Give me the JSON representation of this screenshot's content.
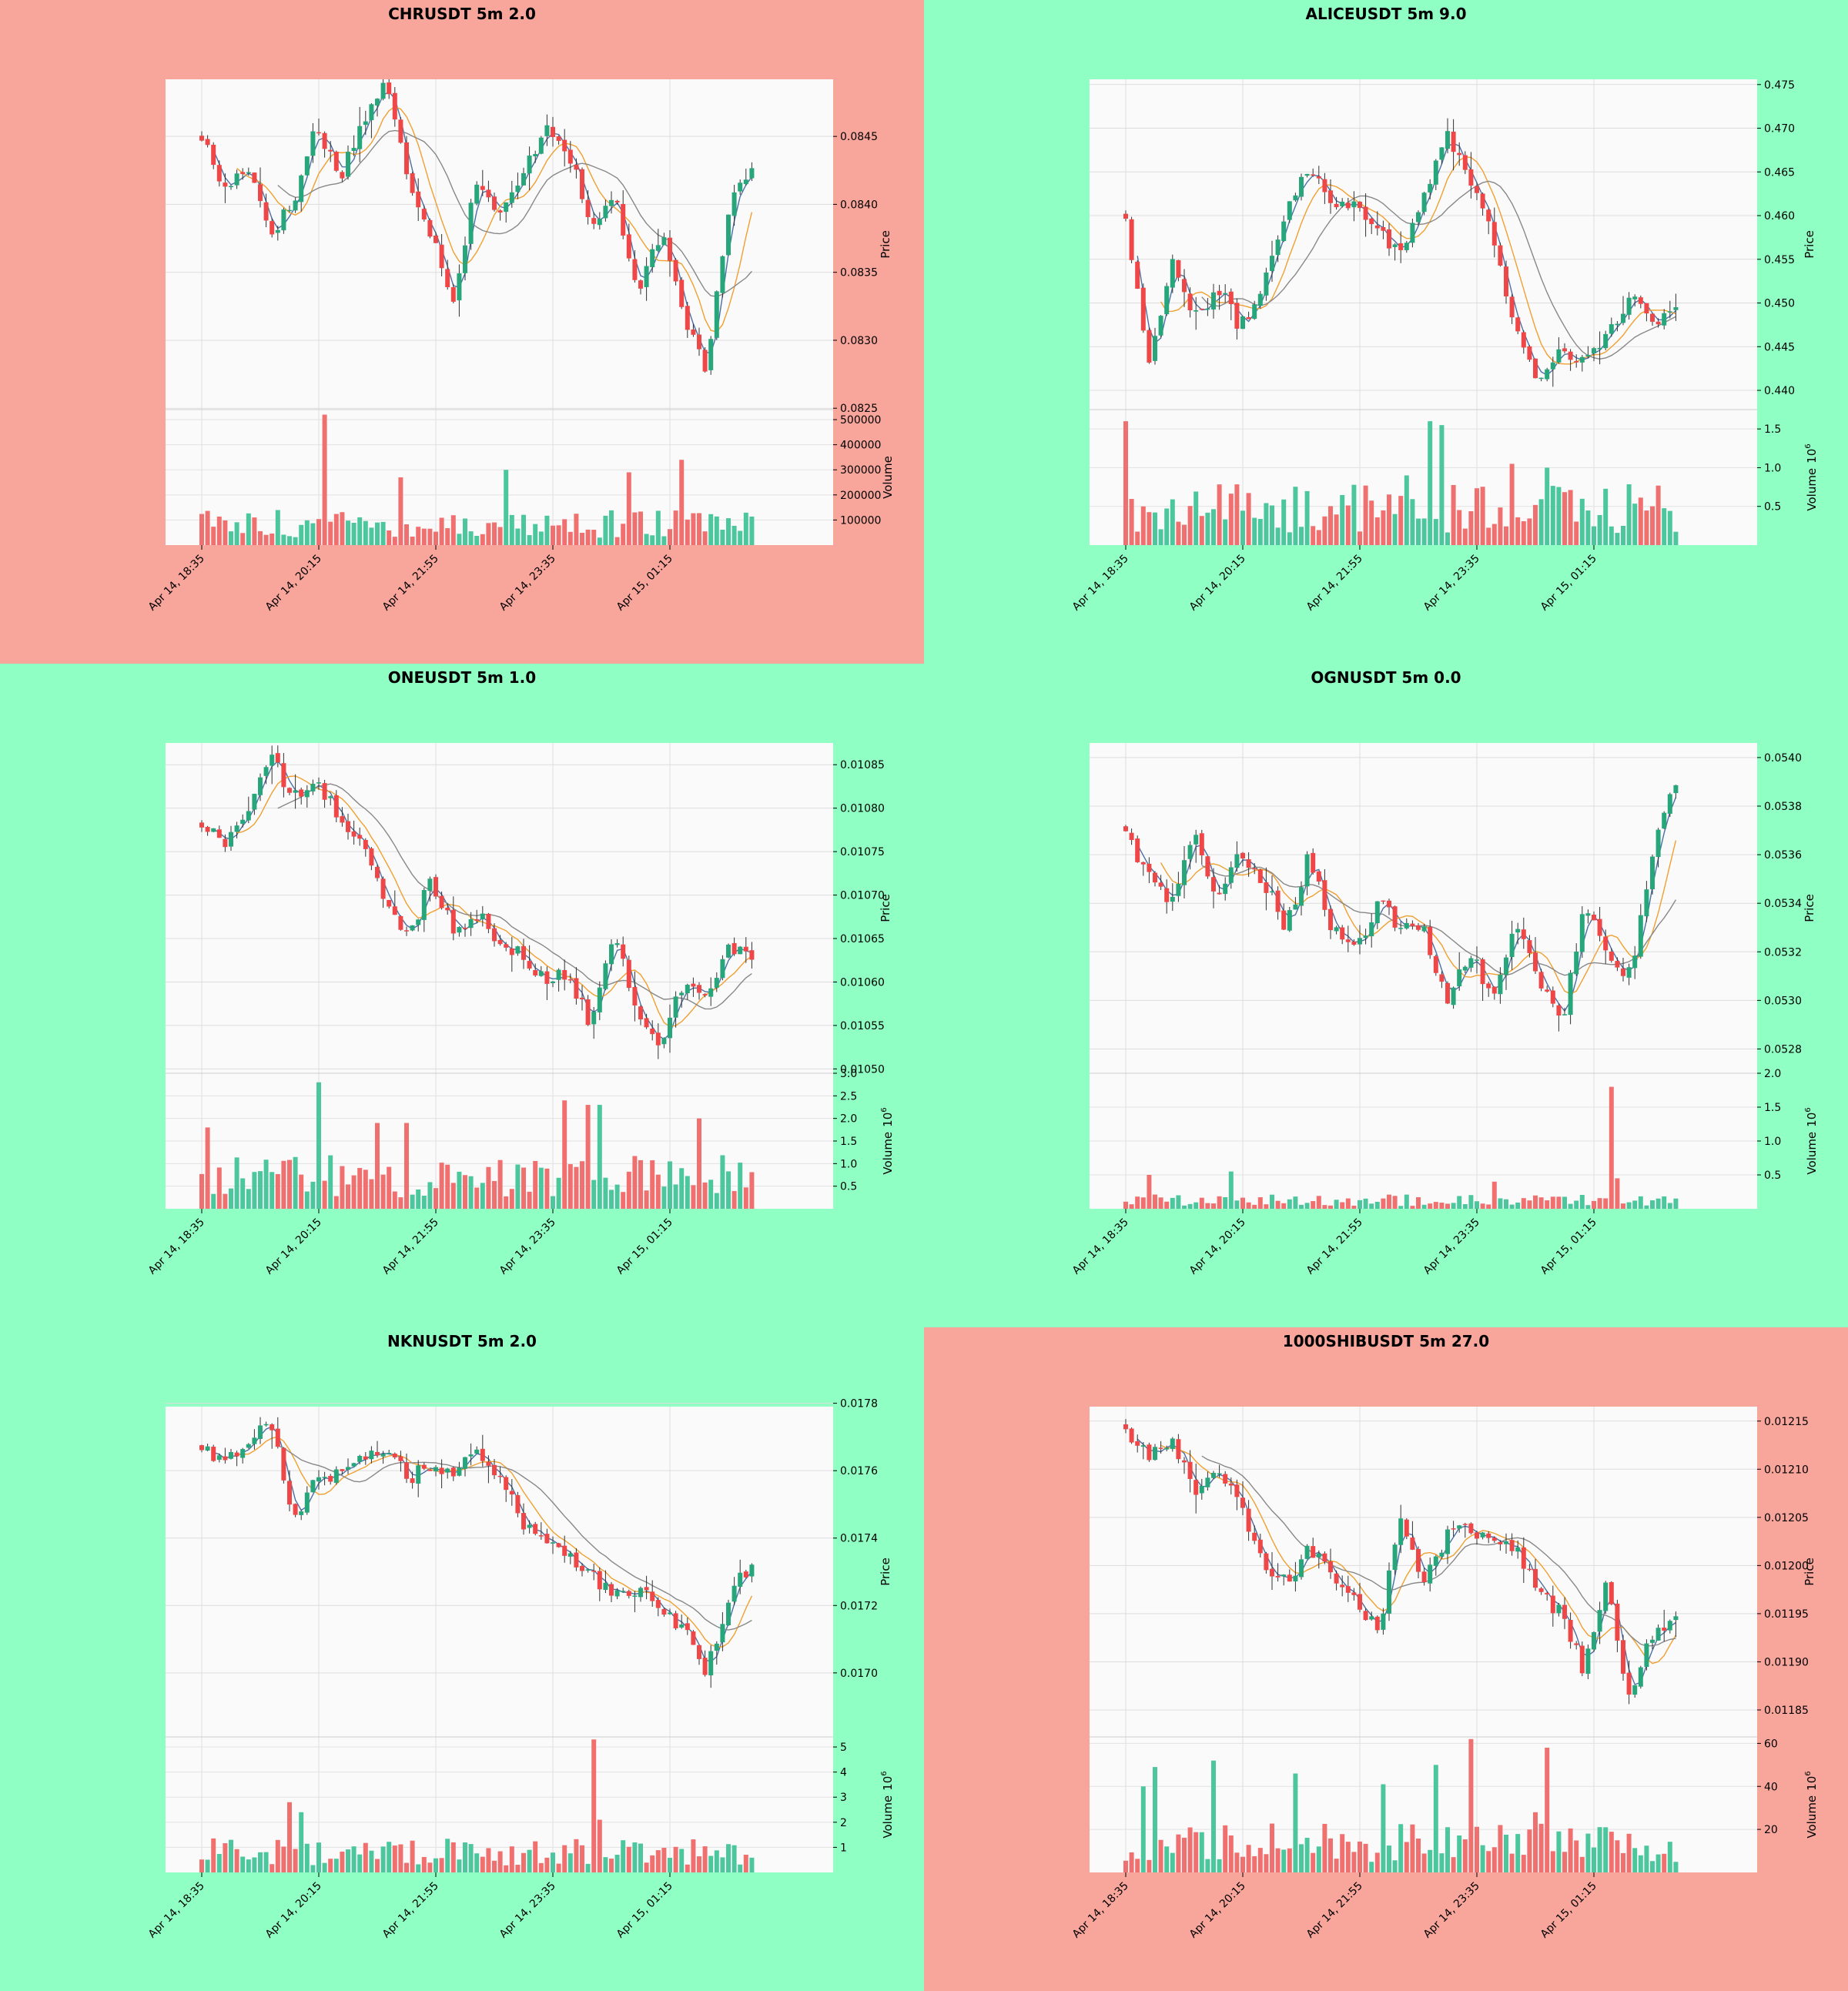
{
  "colors": {
    "up": "#26a67a",
    "down": "#ef4747",
    "volume_up": "#4cc79d",
    "volume_down": "#f07070",
    "ma_fast": "#4a6fa5",
    "ma_mid": "#f0a030",
    "ma_slow": "#888888",
    "panel_red": "#f8a59c",
    "panel_green": "#90ffc4",
    "plot_bg": "#fafafa"
  },
  "x_labels": [
    "Apr 14, 18:35",
    "Apr 14, 20:15",
    "Apr 14, 21:55",
    "Apr 14, 23:35",
    "Apr 15, 01:15"
  ],
  "price_axis_label": "Price",
  "volume_axis_label": "Volume",
  "chart_data": [
    {
      "type": "candlestick",
      "title": "CHRUSDT 5m 2.0",
      "background": "red",
      "price_ticks": [
        "0.0825",
        "0.0830",
        "0.0835",
        "0.0840",
        "0.0845"
      ],
      "price_tick_values": [
        0.0825,
        0.083,
        0.0835,
        0.084,
        0.0845
      ],
      "ylim": [
        0.08249,
        0.08492
      ],
      "close_path": [
        0.0845,
        0.0841,
        0.0843,
        0.0838,
        0.084,
        0.0846,
        0.0842,
        0.0846,
        0.0849,
        0.0842,
        0.0838,
        0.0833,
        0.0842,
        0.0839,
        0.0842,
        0.0846,
        0.0844,
        0.0838,
        0.0841,
        0.0833,
        0.0838,
        0.0832,
        0.0828,
        0.084,
        0.0843
      ],
      "volume_ticks": [
        "100000",
        "200000",
        "300000",
        "400000",
        "500000"
      ],
      "volume_tick_values": [
        100000,
        200000,
        300000,
        400000,
        500000
      ],
      "volume_exponent": "",
      "volume_max": 540000,
      "volume_base": 80000,
      "volume_spikes": [
        [
          21,
          520000
        ],
        [
          34,
          270000
        ],
        [
          52,
          300000
        ],
        [
          73,
          290000
        ],
        [
          82,
          340000
        ]
      ]
    },
    {
      "type": "candlestick",
      "title": "ALICEUSDT 5m 9.0",
      "background": "green",
      "price_ticks": [
        "0.440",
        "0.445",
        "0.450",
        "0.455",
        "0.460",
        "0.465",
        "0.470",
        "0.475"
      ],
      "price_tick_values": [
        0.44,
        0.445,
        0.45,
        0.455,
        0.46,
        0.465,
        0.47,
        0.475
      ],
      "ylim": [
        0.4378,
        0.4756
      ],
      "close_path": [
        0.46,
        0.443,
        0.455,
        0.448,
        0.452,
        0.447,
        0.452,
        0.461,
        0.466,
        0.461,
        0.462,
        0.458,
        0.456,
        0.462,
        0.47,
        0.464,
        0.458,
        0.447,
        0.441,
        0.445,
        0.443,
        0.446,
        0.451,
        0.447,
        0.45
      ],
      "volume_ticks": [
        "0.5",
        "1.0",
        "1.5"
      ],
      "volume_tick_values": [
        0.5,
        1.0,
        1.5
      ],
      "volume_exponent": "6",
      "volume_max": 1.75,
      "volume_base": 0.45,
      "volume_spikes": [
        [
          0,
          1.6
        ],
        [
          52,
          1.6
        ],
        [
          54,
          1.55
        ],
        [
          48,
          0.9
        ],
        [
          66,
          1.05
        ],
        [
          72,
          1.0
        ]
      ]
    },
    {
      "type": "candlestick",
      "title": "ONEUSDT 5m 1.0",
      "background": "green",
      "price_ticks": [
        "0.01050",
        "0.01055",
        "0.01060",
        "0.01065",
        "0.01070",
        "0.01075",
        "0.01080",
        "0.01085"
      ],
      "price_tick_values": [
        0.0105,
        0.01055,
        0.0106,
        0.01065,
        0.0107,
        0.01075,
        0.0108,
        0.01085
      ],
      "ylim": [
        0.010495,
        0.010875
      ],
      "close_path": [
        0.01078,
        0.01076,
        0.0108,
        0.01086,
        0.01081,
        0.01083,
        0.01079,
        0.01076,
        0.01069,
        0.01065,
        0.01072,
        0.01066,
        0.01068,
        0.01064,
        0.01063,
        0.0106,
        0.01061,
        0.01055,
        0.01066,
        0.01057,
        0.01052,
        0.0106,
        0.01058,
        0.01064,
        0.01063
      ],
      "volume_ticks": [
        "0.5",
        "1.0",
        "1.5",
        "2.0",
        "2.5",
        "3.0"
      ],
      "volume_tick_values": [
        0.5,
        1.0,
        1.5,
        2.0,
        2.5,
        3.0
      ],
      "volume_exponent": "6",
      "volume_max": 3.0,
      "volume_base": 0.7,
      "volume_spikes": [
        [
          20,
          2.8
        ],
        [
          30,
          1.9
        ],
        [
          35,
          1.9
        ],
        [
          62,
          2.4
        ],
        [
          66,
          2.3
        ],
        [
          68,
          2.3
        ],
        [
          85,
          2.0
        ],
        [
          1,
          1.8
        ]
      ]
    },
    {
      "type": "candlestick",
      "title": "OGNUSDT 5m 0.0",
      "background": "green",
      "price_ticks": [
        "0.0528",
        "0.0530",
        "0.0532",
        "0.0534",
        "0.0536",
        "0.0538",
        "0.0540"
      ],
      "price_tick_values": [
        0.0528,
        0.053,
        0.0532,
        0.0534,
        0.0536,
        0.0538,
        0.054
      ],
      "ylim": [
        0.0527,
        0.05406
      ],
      "close_path": [
        0.0537,
        0.0535,
        0.0534,
        0.0537,
        0.0534,
        0.0536,
        0.0535,
        0.0533,
        0.0536,
        0.0533,
        0.0532,
        0.0534,
        0.0533,
        0.0533,
        0.053,
        0.0532,
        0.053,
        0.0533,
        0.0531,
        0.0529,
        0.0534,
        0.0532,
        0.0531,
        0.0536,
        0.0539
      ],
      "volume_ticks": [
        "0.5",
        "1.0",
        "1.5",
        "2.0"
      ],
      "volume_tick_values": [
        0.5,
        1.0,
        1.5,
        2.0
      ],
      "volume_exponent": "6",
      "volume_max": 2.0,
      "volume_base": 0.12,
      "volume_spikes": [
        [
          83,
          1.8
        ],
        [
          84,
          0.45
        ],
        [
          18,
          0.55
        ],
        [
          4,
          0.5
        ],
        [
          63,
          0.4
        ]
      ]
    },
    {
      "type": "candlestick",
      "title": "NKNUSDT 5m 2.0",
      "background": "green",
      "price_ticks": [
        "0.0170",
        "0.0172",
        "0.0174",
        "0.0176",
        "0.0178"
      ],
      "price_tick_values": [
        0.017,
        0.0172,
        0.0174,
        0.0176,
        0.0178
      ],
      "ylim": [
        0.01681,
        0.01779
      ],
      "close_path": [
        0.01766,
        0.01762,
        0.01769,
        0.01775,
        0.01745,
        0.0176,
        0.01758,
        0.01765,
        0.01766,
        0.01758,
        0.01762,
        0.0176,
        0.01764,
        0.01758,
        0.01745,
        0.0174,
        0.01735,
        0.0173,
        0.01722,
        0.01724,
        0.0172,
        0.01713,
        0.017,
        0.01722,
        0.01733
      ],
      "volume_ticks": [
        "1",
        "2",
        "3",
        "4",
        "5"
      ],
      "volume_tick_values": [
        1,
        2,
        3,
        4,
        5
      ],
      "volume_exponent": "6",
      "volume_max": 5.4,
      "volume_base": 0.8,
      "volume_spikes": [
        [
          67,
          5.3
        ],
        [
          68,
          2.1
        ],
        [
          15,
          2.8
        ],
        [
          17,
          2.4
        ],
        [
          5,
          1.3
        ]
      ]
    },
    {
      "type": "candlestick",
      "title": "1000SHIBUSDT 5m 27.0",
      "background": "red",
      "price_ticks": [
        "0.01185",
        "0.01190",
        "0.01195",
        "0.01200",
        "0.01205",
        "0.01210",
        "0.01215"
      ],
      "price_tick_values": [
        0.01185,
        0.0119,
        0.01195,
        0.012,
        0.01205,
        0.0121,
        0.01215
      ],
      "ylim": [
        0.011822,
        0.012165
      ],
      "close_path": [
        0.01214,
        0.01211,
        0.01213,
        0.01208,
        0.0121,
        0.01206,
        0.012,
        0.01198,
        0.01202,
        0.01199,
        0.01197,
        0.01193,
        0.01205,
        0.01198,
        0.01203,
        0.01204,
        0.01202,
        0.01202,
        0.01197,
        0.01195,
        0.01189,
        0.01198,
        0.01186,
        0.01193,
        0.01195
      ],
      "volume_ticks": [
        "20",
        "40",
        "60"
      ],
      "volume_tick_values": [
        20,
        40,
        60
      ],
      "volume_exponent": "6",
      "volume_max": 63,
      "volume_base": 13,
      "volume_spikes": [
        [
          15,
          52
        ],
        [
          3,
          40
        ],
        [
          5,
          49
        ],
        [
          29,
          46
        ],
        [
          44,
          41
        ],
        [
          53,
          50
        ],
        [
          59,
          62
        ],
        [
          72,
          58
        ],
        [
          70,
          28
        ]
      ]
    }
  ]
}
